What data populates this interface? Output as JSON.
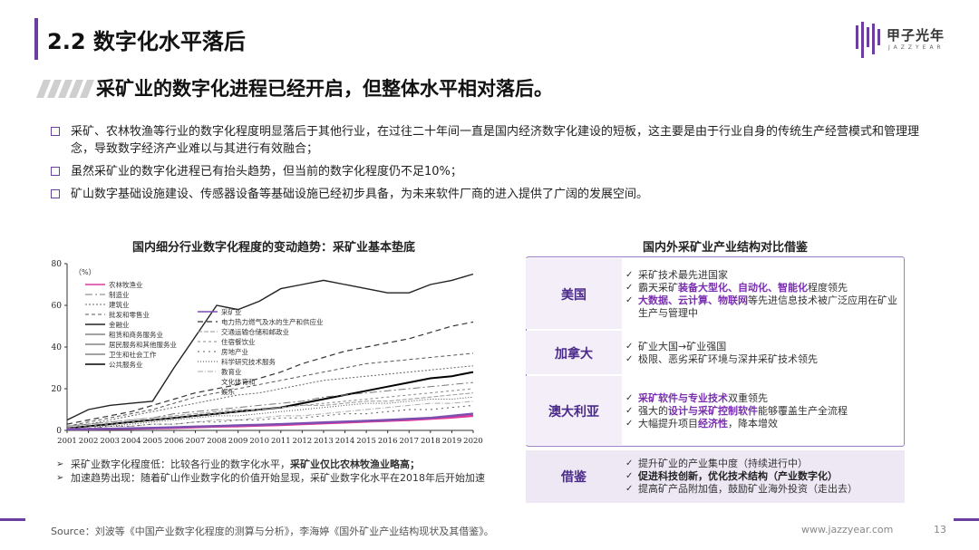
{
  "header": {
    "title": "2.2 数字化水平落后",
    "logo_text": "甲子光年",
    "logo_sub": "JAZZYEAR"
  },
  "subtitle": "采矿业的数字化进程已经开启，但整体水平相对落后。",
  "bullets": [
    "采矿、农林牧渔等行业的数字化程度明显落后于其他行业，在过往二十年间一直是国内经济数字化建设的短板，这主要是由于行业自身的传统生产经营模式和管理理念，导致数字经济产业难以与其进行有效融合；",
    "虽然采矿业的数字化进程已有抬头趋势，但当前的数字化程度仍不足10%；",
    "矿山数字基础设施建设、传感器设备等基础设施已经初步具备，为未来软件厂商的进入提供了广阔的发展空间。"
  ],
  "chart_title": "国内细分行业数字化程度的变动趋势：采矿业基本垫底",
  "chart_data": {
    "type": "line",
    "x": [
      2001,
      2002,
      2003,
      2004,
      2005,
      2006,
      2007,
      2008,
      2009,
      2010,
      2011,
      2012,
      2013,
      2014,
      2015,
      2016,
      2017,
      2018,
      2019,
      2020
    ],
    "ylabel": "（%）",
    "ylim": [
      0,
      80
    ],
    "yticks": [
      0,
      20,
      40,
      60,
      80
    ],
    "legend_left": [
      "农林牧渔业",
      "制造业",
      "建筑业",
      "批发和零售业",
      "金融业",
      "租赁和商务服务业",
      "居民服务和其他服务业",
      "卫生和社会工作",
      "公共服务业"
    ],
    "legend_right": [
      "采矿业",
      "电力热力燃气及水的生产和供应业",
      "交通运输仓储和邮政业",
      "住宿餐饮业",
      "房地产业",
      "科学研究技术服务",
      "教育业",
      "文化体育和",
      "娱乐"
    ],
    "series": [
      {
        "name": "金融业",
        "values": [
          5,
          10,
          12,
          13,
          14,
          30,
          45,
          60,
          58,
          62,
          68,
          70,
          72,
          70,
          68,
          66,
          66,
          70,
          72,
          75
        ],
        "color": "#222222",
        "width": 1.4,
        "dash": ""
      },
      {
        "name": "电力热力燃气及水的生产和供应业",
        "values": [
          3,
          5,
          7,
          9,
          12,
          15,
          18,
          20,
          22,
          25,
          28,
          32,
          35,
          38,
          40,
          42,
          44,
          47,
          50,
          52
        ],
        "color": "#333333",
        "width": 1.2,
        "dash": "6,4"
      },
      {
        "name": "批发和零售业",
        "values": [
          2,
          4,
          6,
          8,
          10,
          13,
          16,
          18,
          20,
          22,
          24,
          26,
          28,
          30,
          32,
          33,
          34,
          35,
          36,
          37
        ],
        "color": "#555555",
        "width": 1,
        "dash": "4,3"
      },
      {
        "name": "建筑业",
        "values": [
          2,
          3,
          5,
          7,
          9,
          11,
          13,
          15,
          17,
          18,
          20,
          22,
          24,
          25,
          26,
          27,
          28,
          29,
          30,
          31
        ],
        "color": "#666666",
        "width": 1,
        "dash": "2,2"
      },
      {
        "name": "公共服务业",
        "values": [
          1,
          2,
          3,
          4,
          5,
          6,
          7,
          8,
          9,
          10,
          11,
          13,
          15,
          17,
          19,
          21,
          23,
          25,
          26,
          28
        ],
        "color": "#000000",
        "width": 2,
        "dash": ""
      },
      {
        "name": "制造业",
        "values": [
          2,
          3,
          4,
          5,
          6,
          8,
          9,
          10,
          11,
          12,
          13,
          14,
          16,
          17,
          18,
          19,
          20,
          21,
          22,
          23
        ],
        "color": "#777777",
        "width": 1,
        "dash": "8,3,2,3"
      },
      {
        "name": "住宿餐饮业",
        "values": [
          1,
          2,
          3,
          4,
          5,
          6,
          7,
          8,
          9,
          10,
          11,
          12,
          13,
          14,
          15,
          16,
          17,
          18,
          19,
          20
        ],
        "color": "#888888",
        "width": 1,
        "dash": "3,3"
      },
      {
        "name": "交通运输仓储和邮政业",
        "values": [
          2,
          3,
          4,
          5,
          6,
          7,
          8,
          9,
          10,
          10,
          11,
          12,
          12,
          13,
          14,
          14,
          15,
          16,
          17,
          18
        ],
        "color": "#999999",
        "width": 1,
        "dash": "5,2"
      },
      {
        "name": "科学研究技术服务",
        "values": [
          1,
          2,
          2,
          3,
          4,
          5,
          6,
          7,
          7,
          8,
          9,
          10,
          11,
          12,
          13,
          13,
          14,
          15,
          15,
          16
        ],
        "color": "#444444",
        "width": 1,
        "dash": "1,2"
      },
      {
        "name": "教育业",
        "values": [
          1,
          1,
          2,
          2,
          3,
          3,
          4,
          5,
          5,
          6,
          7,
          7,
          8,
          9,
          10,
          11,
          12,
          13,
          13,
          14
        ],
        "color": "#aaaaaa",
        "width": 1,
        "dash": "6,2,1,2"
      },
      {
        "name": "房地产业",
        "values": [
          1,
          1,
          2,
          2,
          3,
          3,
          4,
          4,
          5,
          5,
          6,
          6,
          7,
          8,
          8,
          9,
          10,
          10,
          11,
          12
        ],
        "color": "#5b5b5b",
        "width": 1,
        "dash": "2,4"
      },
      {
        "name": "农林牧渔业",
        "values": [
          0.5,
          0.6,
          0.7,
          0.8,
          1,
          1.2,
          1.5,
          1.8,
          2,
          2.3,
          2.6,
          3,
          3.4,
          3.8,
          4.2,
          4.6,
          5,
          5.6,
          6.2,
          7
        ],
        "color": "#e0389a",
        "width": 2.4,
        "dash": ""
      },
      {
        "name": "采矿业",
        "values": [
          0.5,
          0.6,
          0.8,
          1,
          1.2,
          1.5,
          1.8,
          2.1,
          2.4,
          2.7,
          3,
          3.4,
          3.8,
          4.2,
          4.6,
          5,
          5.5,
          6,
          7,
          8
        ],
        "color": "#7a4fb0",
        "width": 2.4,
        "dash": ""
      }
    ]
  },
  "notes": [
    {
      "pre": "采矿业数字化程度低：比较各行业的数字化水平，",
      "bold": "采矿业仅比农林牧渔业略高；",
      "post": ""
    },
    {
      "pre": "加速趋势出现：随着矿山作业数字化的价值开始显现，采矿业数字化水平在2018年后开始加速",
      "bold": "",
      "post": ""
    }
  ],
  "comparison": {
    "title": "国内外采矿业产业结构对比借鉴",
    "rows": [
      {
        "label": "美国",
        "items": [
          [
            {
              "t": "采矿技术最先进国家",
              "s": ""
            }
          ],
          [
            {
              "t": "霸天采矿",
              "s": ""
            },
            {
              "t": "装备大型化、自动化、智能化",
              "s": "hl"
            },
            {
              "t": "程度领先",
              "s": ""
            }
          ],
          [
            {
              "t": "大数据、云计算、物联网",
              "s": "hl"
            },
            {
              "t": "等先进信息技术被广泛应用在矿业生产与管理中",
              "s": ""
            }
          ]
        ]
      },
      {
        "label": "加拿大",
        "items": [
          [
            {
              "t": "矿业大国→矿业强国",
              "s": ""
            }
          ],
          [
            {
              "t": "极限、恶劣采矿环境与深井采矿技术领先",
              "s": ""
            }
          ]
        ]
      },
      {
        "label": "澳大利亚",
        "items": [
          [
            {
              "t": "采矿软件与专业技术",
              "s": "hl"
            },
            {
              "t": "双重领先",
              "s": ""
            }
          ],
          [
            {
              "t": "强大的",
              "s": ""
            },
            {
              "t": "设计与采矿控制软件",
              "s": "hl"
            },
            {
              "t": "能够覆盖生产全流程",
              "s": ""
            }
          ],
          [
            {
              "t": "大幅提升项目",
              "s": ""
            },
            {
              "t": "经济性",
              "s": "hl"
            },
            {
              "t": "，降本增效",
              "s": ""
            }
          ]
        ]
      },
      {
        "label": "借鉴",
        "items": [
          [
            {
              "t": "提升矿业的产业集中度（持续进行中）",
              "s": ""
            }
          ],
          [
            {
              "t": "促进科技创新，优化技术结构（产业数字化）",
              "s": "hlb"
            }
          ],
          [
            {
              "t": "提高矿产品附加值，鼓励矿业海外投资（走出去）",
              "s": ""
            }
          ]
        ]
      }
    ]
  },
  "footer": {
    "source": "Source：刘波等《中国产业数字化程度的测算与分析》，李海婷《国外矿业产业结构现状及其借鉴》。",
    "site": "www.jazzyear.com",
    "page": "13"
  },
  "colors": {
    "accent": "#6b3fa0",
    "highlight": "#7a2fb0",
    "label": "#4a2a8a"
  }
}
